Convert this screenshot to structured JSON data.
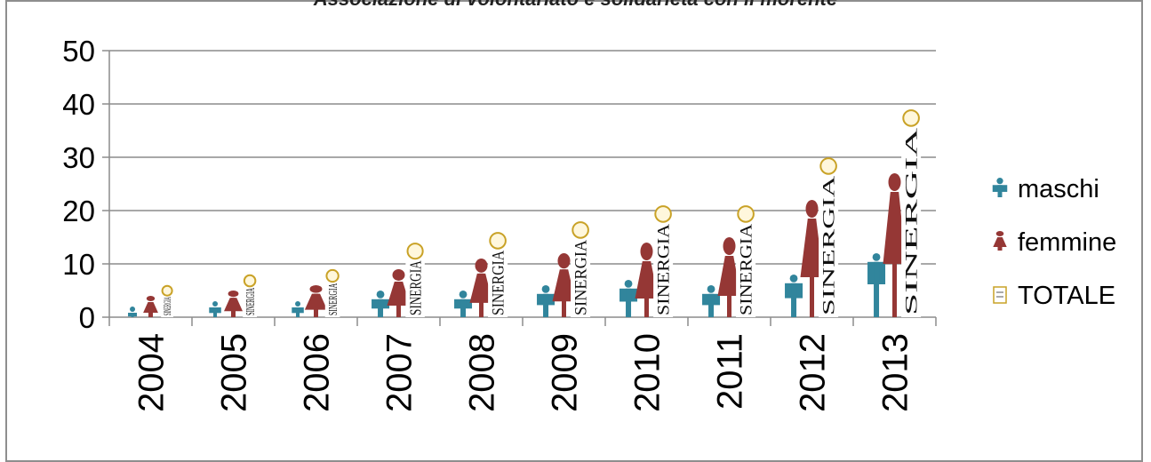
{
  "chart_data": {
    "type": "bar",
    "title": "Associazione di volontariato e solidarietà con il morente",
    "categories": [
      "2004",
      "2005",
      "2006",
      "2007",
      "2008",
      "2009",
      "2010",
      "2011",
      "2012",
      "2013"
    ],
    "series": [
      {
        "name": "maschi",
        "color": "#31859c",
        "icon": "male-figure-icon",
        "values": [
          2,
          3,
          3,
          5,
          5,
          6,
          7,
          6,
          8,
          12
        ]
      },
      {
        "name": "femmine",
        "color": "#953735",
        "icon": "female-figure-icon",
        "values": [
          4,
          5,
          6,
          9,
          11,
          12,
          14,
          15,
          22,
          27
        ]
      },
      {
        "name": "TOTALE",
        "color": "#c9a227",
        "icon": "sinergia-logo-icon",
        "values": [
          6,
          8,
          9,
          14,
          16,
          18,
          21,
          21,
          30,
          39
        ]
      }
    ],
    "logo_text": "SINERGIA",
    "ylim": [
      0,
      50
    ],
    "yticks": [
      "0",
      "10",
      "20",
      "30",
      "40",
      "50"
    ],
    "grid": true,
    "legend": "right"
  }
}
